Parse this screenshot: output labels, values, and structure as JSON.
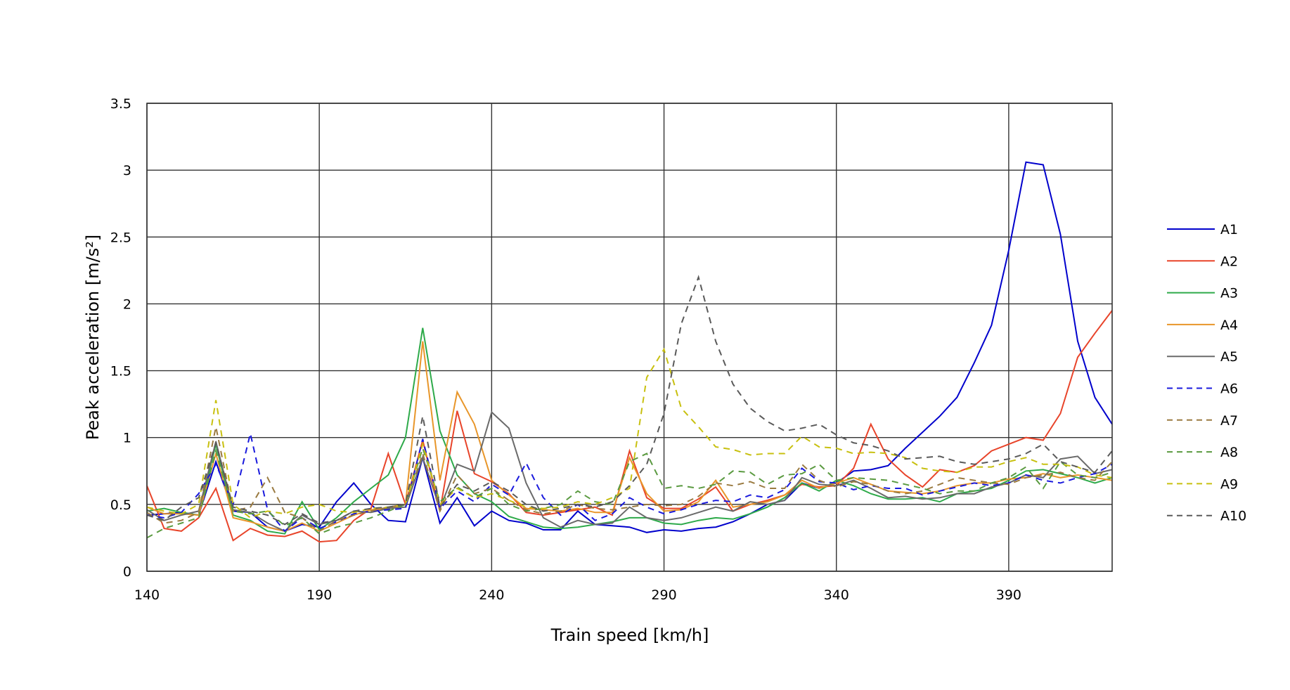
{
  "chart_data": {
    "type": "line",
    "title": "",
    "xlabel": "Train speed [km/h]",
    "ylabel": "Peak acceleration [m/s²]",
    "xlim": [
      140,
      420
    ],
    "ylim": [
      0,
      3.5
    ],
    "x_ticks": [
      140,
      190,
      240,
      290,
      340,
      390
    ],
    "y_ticks": [
      0,
      0.5,
      1,
      1.5,
      2,
      2.5,
      3,
      3.5
    ],
    "y_tick_labels": [
      "0",
      "0.5",
      "1",
      "1.5",
      "2",
      "2.5",
      "3",
      "3.5"
    ],
    "grid": true,
    "legend_position": "right",
    "x": [
      140,
      145,
      150,
      155,
      160,
      165,
      170,
      175,
      180,
      185,
      190,
      195,
      200,
      205,
      210,
      215,
      220,
      225,
      230,
      235,
      240,
      245,
      250,
      255,
      260,
      265,
      270,
      275,
      280,
      285,
      290,
      295,
      300,
      305,
      310,
      315,
      320,
      325,
      330,
      335,
      340,
      345,
      350,
      355,
      360,
      365,
      370,
      375,
      380,
      385,
      390,
      395,
      400,
      405,
      410,
      415,
      420
    ],
    "series": [
      {
        "name": "A1",
        "color": "#0000cc",
        "dash": "solid",
        "values": [
          0.42,
          0.43,
          0.44,
          0.42,
          0.82,
          0.45,
          0.44,
          0.33,
          0.3,
          0.35,
          0.33,
          0.52,
          0.66,
          0.5,
          0.38,
          0.37,
          0.85,
          0.36,
          0.55,
          0.34,
          0.45,
          0.38,
          0.36,
          0.31,
          0.31,
          0.45,
          0.35,
          0.34,
          0.33,
          0.29,
          0.31,
          0.3,
          0.32,
          0.33,
          0.37,
          0.43,
          0.5,
          0.53,
          0.66,
          0.62,
          0.66,
          0.75,
          0.76,
          0.79,
          0.92,
          1.04,
          1.16,
          1.3,
          1.56,
          1.84,
          2.4,
          3.06,
          3.04,
          2.52,
          1.72,
          1.3,
          1.1
        ]
      },
      {
        "name": "A2",
        "color": "#e8442a",
        "dash": "solid",
        "values": [
          0.64,
          0.32,
          0.3,
          0.4,
          0.62,
          0.23,
          0.32,
          0.27,
          0.26,
          0.3,
          0.22,
          0.23,
          0.38,
          0.47,
          0.88,
          0.5,
          0.98,
          0.45,
          1.2,
          0.73,
          0.67,
          0.58,
          0.44,
          0.42,
          0.44,
          0.46,
          0.48,
          0.42,
          0.9,
          0.55,
          0.47,
          0.47,
          0.54,
          0.63,
          0.45,
          0.5,
          0.53,
          0.57,
          0.65,
          0.63,
          0.64,
          0.77,
          1.1,
          0.84,
          0.72,
          0.63,
          0.76,
          0.74,
          0.79,
          0.9,
          0.95,
          1.0,
          0.98,
          1.18,
          1.6,
          1.78,
          1.95
        ]
      },
      {
        "name": "A3",
        "color": "#2eaa4a",
        "dash": "solid",
        "values": [
          0.45,
          0.47,
          0.44,
          0.42,
          0.95,
          0.42,
          0.38,
          0.3,
          0.28,
          0.52,
          0.31,
          0.4,
          0.52,
          0.62,
          0.72,
          1.0,
          1.82,
          1.05,
          0.72,
          0.58,
          0.52,
          0.41,
          0.37,
          0.33,
          0.32,
          0.33,
          0.35,
          0.37,
          0.4,
          0.4,
          0.36,
          0.35,
          0.38,
          0.4,
          0.39,
          0.43,
          0.48,
          0.55,
          0.66,
          0.6,
          0.68,
          0.64,
          0.58,
          0.54,
          0.54,
          0.55,
          0.52,
          0.58,
          0.6,
          0.62,
          0.68,
          0.75,
          0.76,
          0.73,
          0.7,
          0.66,
          0.7
        ]
      },
      {
        "name": "A4",
        "color": "#e8962a",
        "dash": "solid",
        "values": [
          0.48,
          0.43,
          0.43,
          0.42,
          0.88,
          0.4,
          0.37,
          0.33,
          0.3,
          0.36,
          0.3,
          0.36,
          0.42,
          0.46,
          0.47,
          0.5,
          1.72,
          0.68,
          1.34,
          1.1,
          0.68,
          0.57,
          0.47,
          0.46,
          0.45,
          0.47,
          0.44,
          0.44,
          0.85,
          0.58,
          0.45,
          0.46,
          0.52,
          0.68,
          0.48,
          0.5,
          0.52,
          0.57,
          0.68,
          0.62,
          0.66,
          0.7,
          0.65,
          0.6,
          0.59,
          0.58,
          0.6,
          0.64,
          0.66,
          0.66,
          0.69,
          0.7,
          0.73,
          0.7,
          0.72,
          0.7,
          0.68
        ]
      },
      {
        "name": "A5",
        "color": "#6a6a6a",
        "dash": "solid",
        "values": [
          0.46,
          0.38,
          0.42,
          0.45,
          0.97,
          0.46,
          0.44,
          0.36,
          0.3,
          0.42,
          0.35,
          0.38,
          0.45,
          0.44,
          0.47,
          0.48,
          0.85,
          0.47,
          0.8,
          0.75,
          1.19,
          1.07,
          0.66,
          0.4,
          0.33,
          0.38,
          0.35,
          0.36,
          0.48,
          0.4,
          0.38,
          0.4,
          0.44,
          0.48,
          0.45,
          0.52,
          0.5,
          0.53,
          0.7,
          0.65,
          0.64,
          0.68,
          0.62,
          0.55,
          0.56,
          0.54,
          0.55,
          0.58,
          0.58,
          0.63,
          0.66,
          0.72,
          0.7,
          0.84,
          0.86,
          0.73,
          0.76
        ]
      },
      {
        "name": "A6",
        "color": "#1a1add",
        "dash": "dashed",
        "values": [
          0.42,
          0.4,
          0.44,
          0.58,
          0.8,
          0.5,
          1.03,
          0.46,
          0.3,
          0.4,
          0.32,
          0.37,
          0.43,
          0.45,
          0.46,
          0.47,
          0.99,
          0.47,
          0.6,
          0.52,
          0.65,
          0.57,
          0.81,
          0.55,
          0.42,
          0.5,
          0.38,
          0.43,
          0.55,
          0.48,
          0.43,
          0.46,
          0.5,
          0.53,
          0.52,
          0.57,
          0.55,
          0.61,
          0.77,
          0.67,
          0.66,
          0.61,
          0.64,
          0.62,
          0.62,
          0.57,
          0.6,
          0.63,
          0.66,
          0.64,
          0.66,
          0.72,
          0.68,
          0.66,
          0.7,
          0.73,
          0.8
        ]
      },
      {
        "name": "A7",
        "color": "#9a7a40",
        "dash": "dashed",
        "values": [
          0.44,
          0.36,
          0.38,
          0.44,
          1.08,
          0.45,
          0.48,
          0.7,
          0.44,
          0.4,
          0.3,
          0.38,
          0.42,
          0.45,
          0.48,
          0.5,
          0.88,
          0.45,
          0.72,
          0.58,
          0.62,
          0.53,
          0.46,
          0.43,
          0.45,
          0.5,
          0.47,
          0.46,
          0.48,
          0.5,
          0.49,
          0.5,
          0.56,
          0.66,
          0.64,
          0.67,
          0.62,
          0.62,
          0.8,
          0.68,
          0.63,
          0.67,
          0.65,
          0.6,
          0.58,
          0.6,
          0.65,
          0.7,
          0.68,
          0.66,
          0.65,
          0.7,
          0.72,
          0.74,
          0.7,
          0.68,
          0.82
        ]
      },
      {
        "name": "A8",
        "color": "#5a9a40",
        "dash": "dashed",
        "values": [
          0.25,
          0.32,
          0.36,
          0.4,
          0.9,
          0.45,
          0.43,
          0.45,
          0.34,
          0.4,
          0.28,
          0.33,
          0.36,
          0.4,
          0.45,
          0.5,
          0.92,
          0.52,
          0.63,
          0.55,
          0.62,
          0.5,
          0.45,
          0.47,
          0.5,
          0.6,
          0.52,
          0.5,
          0.82,
          0.88,
          0.62,
          0.64,
          0.62,
          0.65,
          0.75,
          0.74,
          0.65,
          0.72,
          0.73,
          0.8,
          0.68,
          0.7,
          0.69,
          0.68,
          0.65,
          0.62,
          0.58,
          0.6,
          0.6,
          0.66,
          0.7,
          0.78,
          0.62,
          0.82,
          0.72,
          0.7,
          0.74
        ]
      },
      {
        "name": "A9",
        "color": "#c8c010",
        "dash": "dashed",
        "values": [
          0.48,
          0.45,
          0.43,
          0.5,
          1.28,
          0.5,
          0.4,
          0.45,
          0.43,
          0.48,
          0.5,
          0.45,
          0.44,
          0.47,
          0.48,
          0.5,
          0.95,
          0.5,
          0.62,
          0.55,
          0.58,
          0.53,
          0.48,
          0.47,
          0.48,
          0.52,
          0.5,
          0.55,
          0.62,
          1.45,
          1.66,
          1.22,
          1.08,
          0.93,
          0.91,
          0.87,
          0.88,
          0.88,
          1.01,
          0.93,
          0.92,
          0.88,
          0.89,
          0.88,
          0.85,
          0.77,
          0.75,
          0.74,
          0.78,
          0.78,
          0.82,
          0.85,
          0.8,
          0.8,
          0.78,
          0.72,
          0.7
        ]
      },
      {
        "name": "A10",
        "color": "#5a5a5a",
        "dash": "dashed",
        "values": [
          0.42,
          0.38,
          0.48,
          0.55,
          0.96,
          0.48,
          0.45,
          0.42,
          0.35,
          0.43,
          0.36,
          0.38,
          0.45,
          0.47,
          0.48,
          0.5,
          1.16,
          0.48,
          0.65,
          0.6,
          0.67,
          0.6,
          0.5,
          0.45,
          0.47,
          0.5,
          0.48,
          0.52,
          0.64,
          0.8,
          1.18,
          1.85,
          2.2,
          1.72,
          1.4,
          1.22,
          1.12,
          1.05,
          1.07,
          1.1,
          1.02,
          0.96,
          0.94,
          0.9,
          0.84,
          0.85,
          0.86,
          0.82,
          0.8,
          0.82,
          0.84,
          0.88,
          0.95,
          0.82,
          0.78,
          0.74,
          0.9
        ]
      }
    ]
  }
}
